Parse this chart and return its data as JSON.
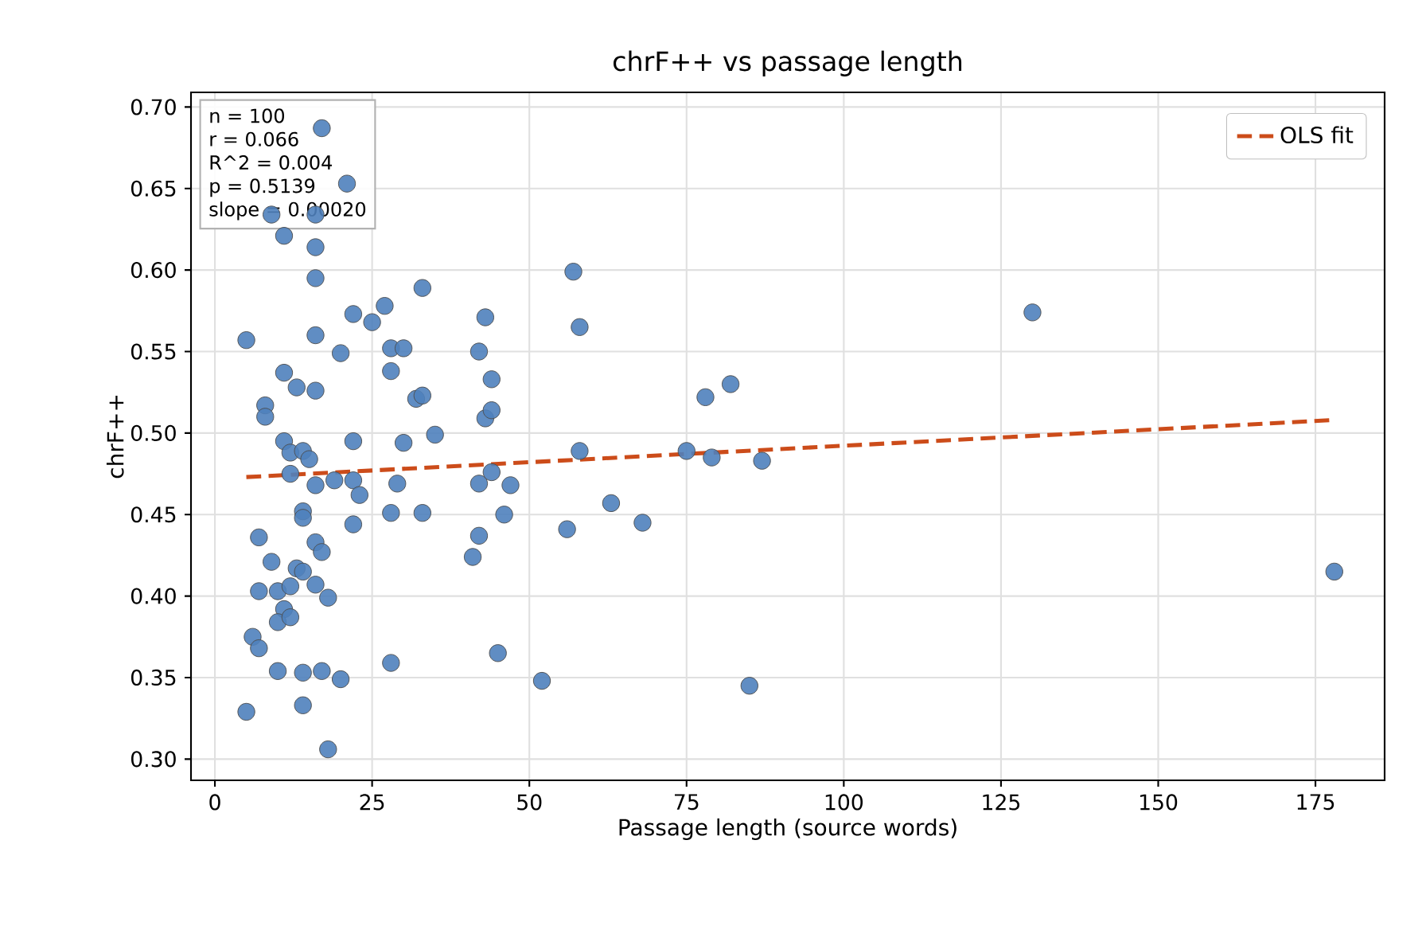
{
  "chart_data": {
    "type": "scatter",
    "title": "chrF++ vs passage length",
    "xlabel": "Passage length (source words)",
    "ylabel": "chrF++",
    "xlim": [
      -3.8,
      186
    ],
    "ylim": [
      0.287,
      0.709
    ],
    "xticks": [
      0,
      25,
      50,
      75,
      100,
      125,
      150,
      175
    ],
    "yticks": [
      {
        "value": 0.3,
        "label": "0.30"
      },
      {
        "value": 0.35,
        "label": "0.35"
      },
      {
        "value": 0.4,
        "label": "0.40"
      },
      {
        "value": 0.45,
        "label": "0.45"
      },
      {
        "value": 0.5,
        "label": "0.50"
      },
      {
        "value": 0.55,
        "label": "0.55"
      },
      {
        "value": 0.6,
        "label": "0.60"
      },
      {
        "value": 0.65,
        "label": "0.65"
      },
      {
        "value": 0.7,
        "label": "0.70"
      }
    ],
    "grid": true,
    "legend": "top right",
    "annotations": [
      "n = 100",
      "r = 0.066",
      "R^2 = 0.004",
      "p = 0.5139",
      "slope = 0.00020"
    ],
    "series": [
      {
        "color": "#4f81bd",
        "marker": "circle",
        "x": [
          5,
          11,
          13,
          16,
          16,
          20,
          22,
          25,
          27,
          28,
          30,
          28,
          32,
          33,
          33,
          43,
          42,
          44,
          43,
          44,
          8,
          8,
          11,
          22,
          30,
          35,
          17,
          21,
          9,
          11,
          16,
          16,
          16,
          12,
          14,
          15,
          12,
          16,
          19,
          22,
          23,
          29,
          28,
          33,
          22,
          14,
          14,
          7,
          9,
          16,
          17,
          13,
          14,
          7,
          10,
          12,
          16,
          18,
          11,
          10,
          12,
          6,
          7,
          10,
          14,
          17,
          20,
          28,
          5,
          14,
          18,
          42,
          44,
          42,
          41,
          45,
          46,
          57,
          58,
          78,
          82,
          58,
          75,
          79,
          87,
          47,
          63,
          56,
          68,
          52,
          85,
          130,
          178
        ],
        "values": [
          0.557,
          0.537,
          0.528,
          0.526,
          0.56,
          0.549,
          0.573,
          0.568,
          0.578,
          0.552,
          0.552,
          0.538,
          0.521,
          0.523,
          0.589,
          0.571,
          0.55,
          0.533,
          0.509,
          0.514,
          0.517,
          0.51,
          0.495,
          0.495,
          0.494,
          0.499,
          0.687,
          0.653,
          0.634,
          0.621,
          0.634,
          0.614,
          0.595,
          0.488,
          0.489,
          0.484,
          0.475,
          0.468,
          0.471,
          0.471,
          0.462,
          0.469,
          0.451,
          0.451,
          0.444,
          0.452,
          0.448,
          0.436,
          0.421,
          0.433,
          0.427,
          0.417,
          0.415,
          0.403,
          0.403,
          0.406,
          0.407,
          0.399,
          0.392,
          0.384,
          0.387,
          0.375,
          0.368,
          0.354,
          0.353,
          0.354,
          0.349,
          0.359,
          0.329,
          0.333,
          0.306,
          0.469,
          0.476,
          0.437,
          0.424,
          0.365,
          0.45,
          0.599,
          0.565,
          0.522,
          0.53,
          0.489,
          0.489,
          0.485,
          0.483,
          0.468,
          0.457,
          0.441,
          0.445,
          0.348,
          0.345,
          0.574,
          0.415
        ]
      },
      {
        "type": "line",
        "name": "OLS fit",
        "color": "#cc4c1a",
        "marker": "none",
        "line_style": "dashed",
        "x": [
          5,
          178
        ],
        "values": [
          0.473,
          0.508
        ]
      }
    ]
  }
}
